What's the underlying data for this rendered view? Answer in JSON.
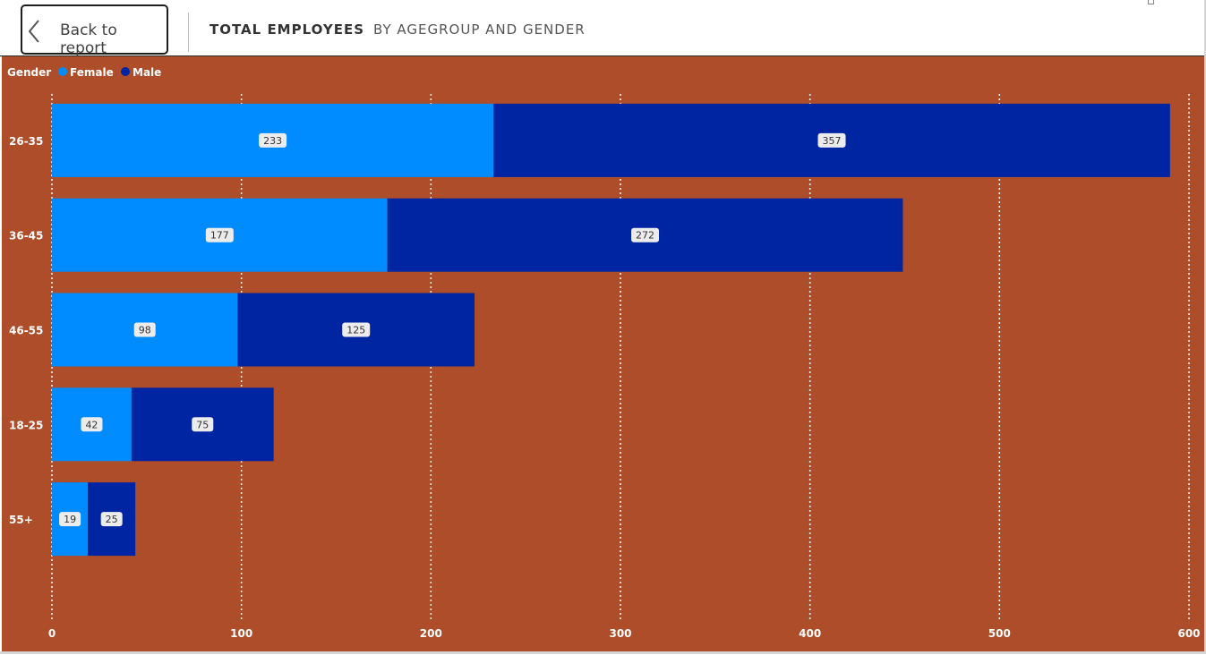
{
  "header": {
    "back_label": "Back to report",
    "title": "TOTAL EMPLOYEES",
    "subtitle": "BY AGEGROUP AND GENDER"
  },
  "colors": {
    "background": "#ae4d29",
    "female": "#008bff",
    "male": "#0025a2",
    "text": "#ffffff",
    "label_bg": "#ececec",
    "label_text": "#333333"
  },
  "chart_data": {
    "type": "bar",
    "orientation": "horizontal",
    "stacked": true,
    "legend_title": "Gender",
    "legend_position": "top-left",
    "categories": [
      "26-35",
      "36-45",
      "46-55",
      "18-25",
      "55+"
    ],
    "series": [
      {
        "name": "Female",
        "values": [
          233,
          177,
          98,
          42,
          19
        ]
      },
      {
        "name": "Male",
        "values": [
          357,
          272,
          125,
          75,
          25
        ]
      }
    ],
    "xlim": [
      0,
      600
    ],
    "xticks": [
      0,
      100,
      200,
      300,
      400,
      500,
      600
    ],
    "grid": true,
    "data_labels": true
  }
}
